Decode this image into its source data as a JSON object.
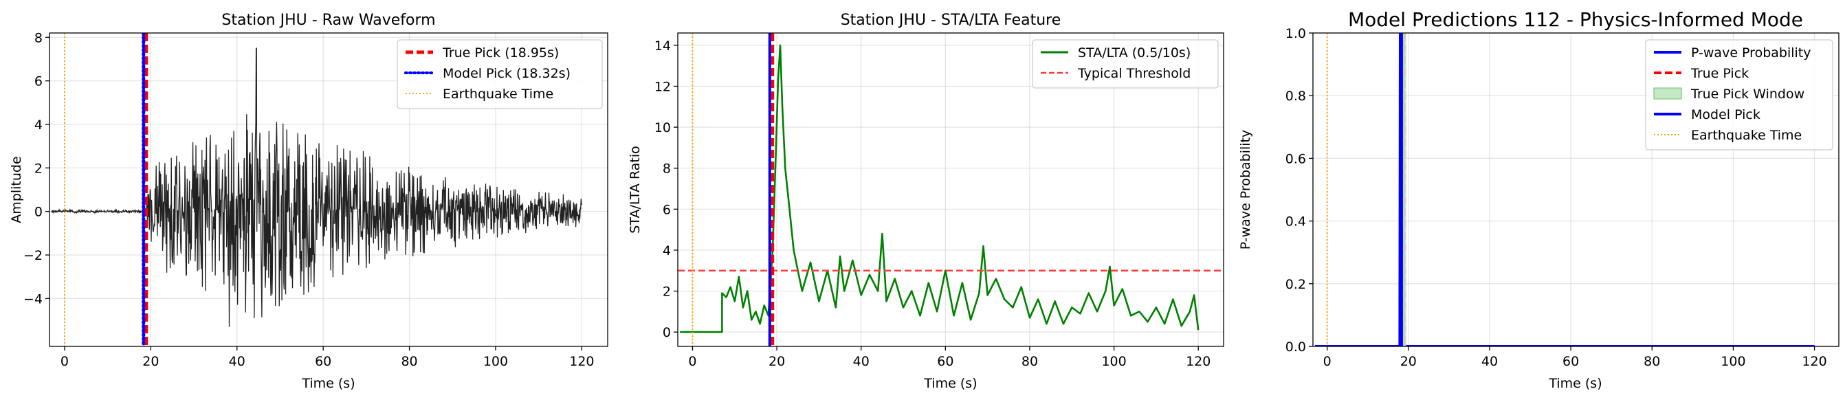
{
  "figure": {
    "background": "#ffffff"
  },
  "chart_data": [
    {
      "type": "line",
      "title": "Station JHU - Raw Waveform",
      "xlabel": "Time (s)",
      "ylabel": "Amplitude",
      "xlim": [
        -3.5,
        126
      ],
      "ylim": [
        -6.2,
        8.2
      ],
      "xticks": [
        0,
        20,
        40,
        60,
        80,
        100,
        120
      ],
      "xtick_labels": [
        "0",
        "20",
        "40",
        "60",
        "80",
        "100",
        "120"
      ],
      "yticks": [
        -4,
        -2,
        0,
        2,
        4,
        6,
        8
      ],
      "ytick_labels": [
        "−4",
        "−2",
        "0",
        "2",
        "4",
        "6",
        "8"
      ],
      "grid": true,
      "legend_position": "upper right",
      "series": [
        {
          "name": "",
          "color": "#222222",
          "style": "solid",
          "kind": "waveform",
          "x_range": [
            -3,
            120
          ],
          "pre_event_amplitude": 0.06,
          "peak_amplitude": 7.5,
          "peak_time": 44.5,
          "min_amplitude": -5.3
        },
        {
          "name": "True Pick (18.95s)",
          "color": "#ff0000",
          "style": "dashed",
          "kind": "vline",
          "x": 18.95
        },
        {
          "name": "Model Pick (18.32s)",
          "color": "#0000ff",
          "style": "dotted",
          "kind": "vline",
          "x": 18.32
        },
        {
          "name": "Earthquake Time",
          "color": "#ffa500",
          "style": "dotted-thin",
          "kind": "vline",
          "x": 0
        }
      ]
    },
    {
      "type": "line",
      "title": "Station JHU - STA/LTA Feature",
      "xlabel": "Time (s)",
      "ylabel": "STA/LTA Ratio",
      "xlim": [
        -3.5,
        126
      ],
      "ylim": [
        -0.7,
        14.6
      ],
      "xticks": [
        0,
        20,
        40,
        60,
        80,
        100,
        120
      ],
      "xtick_labels": [
        "0",
        "20",
        "40",
        "60",
        "80",
        "100",
        "120"
      ],
      "yticks": [
        0,
        2,
        4,
        6,
        8,
        10,
        12,
        14
      ],
      "ytick_labels": [
        "0",
        "2",
        "4",
        "6",
        "8",
        "10",
        "12",
        "14"
      ],
      "grid": true,
      "legend_position": "upper right",
      "series": [
        {
          "name": "STA/LTA (0.5/10s)",
          "color": "#008000",
          "style": "solid",
          "kind": "stalta",
          "x": [
            -3,
            7,
            7,
            8,
            9,
            10,
            11,
            12,
            13,
            14,
            15,
            16,
            17,
            18,
            19,
            19.8,
            20.3,
            20.8,
            21.3,
            22,
            23,
            24,
            25,
            26,
            28,
            30,
            32,
            34,
            35,
            36,
            38,
            40,
            42,
            44,
            45,
            46,
            48,
            50,
            52,
            54,
            56,
            58,
            60,
            62,
            64,
            66,
            68,
            69,
            70,
            72,
            74,
            76,
            78,
            80,
            82,
            84,
            86,
            88,
            90,
            92,
            94,
            96,
            98,
            99,
            100,
            102,
            104,
            106,
            108,
            110,
            112,
            114,
            116,
            118,
            119,
            120
          ],
          "y": [
            0,
            0,
            1.9,
            1.7,
            2.2,
            1.5,
            2.7,
            1.2,
            2.0,
            0.6,
            1.0,
            0.4,
            1.3,
            0.8,
            4.0,
            9.0,
            12.3,
            14.0,
            11.0,
            8.0,
            6.0,
            4.0,
            3.0,
            2.0,
            3.4,
            1.5,
            3.0,
            1.2,
            3.7,
            2.0,
            3.5,
            1.8,
            2.8,
            2.0,
            4.8,
            1.5,
            2.6,
            1.2,
            2.0,
            0.8,
            2.4,
            1.0,
            3.0,
            0.8,
            2.4,
            0.6,
            1.9,
            4.2,
            1.8,
            2.6,
            1.6,
            1.2,
            2.2,
            0.7,
            1.6,
            0.4,
            1.5,
            0.4,
            1.2,
            0.9,
            1.9,
            1.0,
            2.0,
            3.2,
            1.3,
            2.1,
            0.8,
            1.0,
            0.5,
            1.2,
            0.4,
            1.6,
            0.3,
            1.0,
            1.8,
            0.1
          ]
        },
        {
          "name": "Typical Threshold",
          "color": "#ff3b3b",
          "style": "dashed",
          "kind": "hline",
          "y": 3.0
        },
        {
          "name": "",
          "color": "#ff0000",
          "style": "dashed",
          "kind": "vline",
          "x": 18.95
        },
        {
          "name": "",
          "color": "#0000ff",
          "style": "solid",
          "kind": "vline",
          "x": 18.32
        },
        {
          "name": "",
          "color": "#ffa500",
          "style": "dotted-thin",
          "kind": "vline",
          "x": 0
        }
      ]
    },
    {
      "type": "line",
      "title": "Model Predictions 112 - Physics-Informed Mode",
      "xlabel": "Time (s)",
      "ylabel": "P-wave Probability",
      "xlim": [
        -3.5,
        126
      ],
      "ylim": [
        0,
        1.0
      ],
      "xticks": [
        0,
        20,
        40,
        60,
        80,
        100,
        120
      ],
      "xtick_labels": [
        "0",
        "20",
        "40",
        "60",
        "80",
        "100",
        "120"
      ],
      "yticks": [
        0,
        0.2,
        0.4,
        0.6,
        0.8,
        1.0
      ],
      "ytick_labels": [
        "0.0",
        "0.2",
        "0.4",
        "0.6",
        "0.8",
        "1.0"
      ],
      "grid": true,
      "legend_position": "upper right",
      "series": [
        {
          "name": "P-wave Probability",
          "color": "#0000ff",
          "style": "solid",
          "kind": "line",
          "x": [
            -3,
            17.9,
            18.0,
            18.3,
            18.7,
            18.8,
            120
          ],
          "y": [
            0,
            0,
            1.0,
            1.0,
            1.0,
            0,
            0
          ]
        },
        {
          "name": "True Pick",
          "color": "#ff0000",
          "style": "dashed",
          "kind": "vline",
          "x": 18.95
        },
        {
          "name": "True Pick Window",
          "color": "#c5e8c5",
          "style": "fill",
          "kind": "span",
          "x0": 18.45,
          "x1": 19.45
        },
        {
          "name": "Model Pick",
          "color": "#0000ff",
          "style": "solid",
          "kind": "vline",
          "x": 18.32
        },
        {
          "name": "Earthquake Time",
          "color": "#ffa500",
          "style": "dotted-thin",
          "kind": "vline",
          "x": 0
        }
      ]
    }
  ]
}
